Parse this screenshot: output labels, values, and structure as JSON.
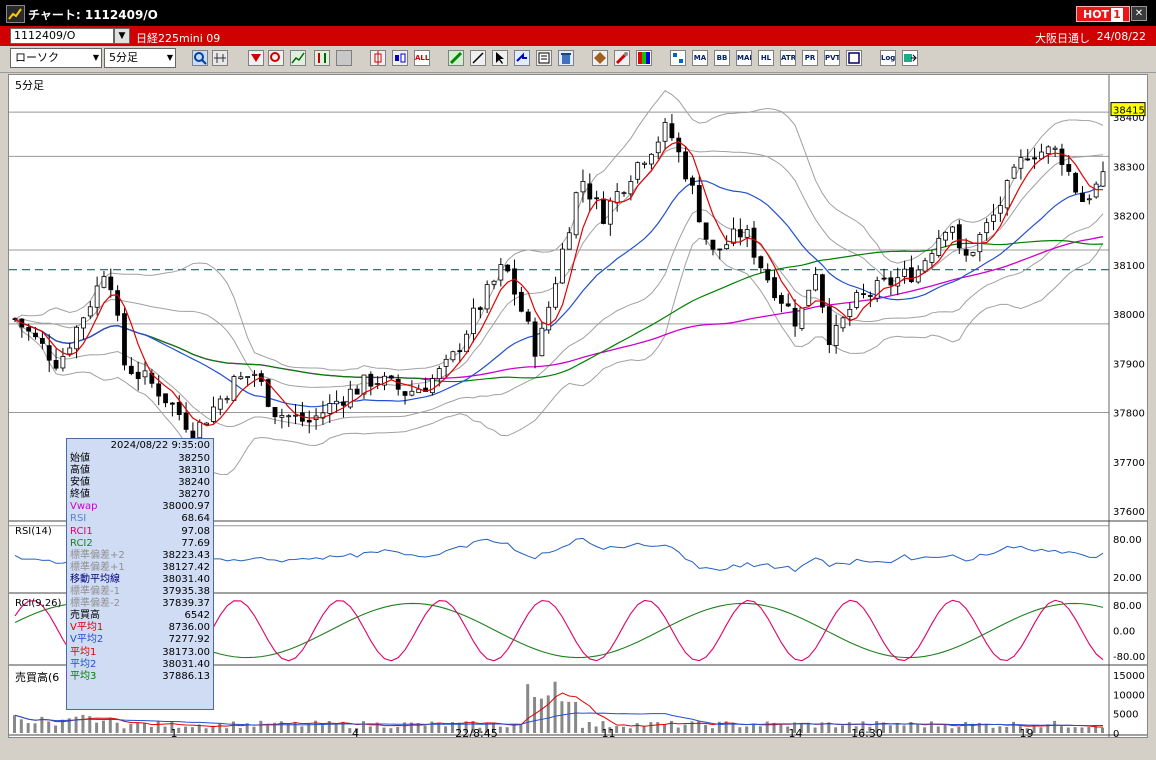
{
  "window": {
    "title": "チャート: 1112409/O",
    "hot_label": "HOT",
    "hot_num": "1"
  },
  "symbol": {
    "code": "1112409/O",
    "name": "日経225mini 09",
    "market": "大阪日通し",
    "date": "24/08/22"
  },
  "toolbar": {
    "chart_type": "ローソク",
    "interval": "5分足"
  },
  "icons": [
    "zoom-icon",
    "bars-icon",
    "marker-icon",
    "search-icon",
    "chart-icon",
    "compare-icon",
    "disabled-icon",
    "candle-icon",
    "candle2-icon",
    "all-icon",
    "pen-icon",
    "line-tool-icon",
    "cursor-icon",
    "arrow-icon",
    "list-icon",
    "trash-icon",
    "settings-icon",
    "wrench-icon",
    "palette-icon",
    "indicator-icon",
    "ma-icon",
    "bb-icon",
    "mae-icon",
    "hl-icon",
    "atr-icon",
    "pr-icon",
    "pvt-icon",
    "window-icon",
    "log-icon",
    "export-icon"
  ],
  "icon_labels": {
    "all": "ALL",
    "ma": "MA",
    "bb": "BB",
    "mae": "MAE",
    "hl": "HL",
    "atr": "ATR",
    "pr": "PR",
    "pvt": "PVT",
    "log": "Log"
  },
  "colors": {
    "candle_up": "#000000",
    "ma1": "#e00000",
    "ma2": "#2050d0",
    "ma3": "#008000",
    "vwap": "#cc00cc",
    "bb": "#a0a0a0",
    "rsi": "#2060c0",
    "rci1": "#e0006a",
    "rci2": "#208020",
    "dash": "#206060",
    "price_marker": "#ffff00"
  },
  "panels": {
    "price": {
      "label": "5分足",
      "current": "38415",
      "ticks": [
        "38400",
        "38300",
        "38200",
        "38100",
        "38000",
        "37900",
        "37800",
        "37700",
        "37600"
      ]
    },
    "rsi": {
      "label": "RSI(14)",
      "ticks": [
        "80.00",
        "20.00"
      ]
    },
    "rci": {
      "label": "RCI(9,26)",
      "ticks": [
        "80.00",
        "0.00",
        "-80.00"
      ]
    },
    "volume": {
      "label": "売買高(6",
      "ticks": [
        "15000",
        "10000",
        "5000",
        "0"
      ]
    }
  },
  "xaxis": [
    "1",
    "4",
    "22/8:45",
    "11",
    "14",
    "16:30",
    "19"
  ],
  "info": {
    "timestamp": "2024/08/22  9:35:00",
    "rows": [
      {
        "label": "始値",
        "value": "38250",
        "color": "#000000"
      },
      {
        "label": "高値",
        "value": "38310",
        "color": "#000000"
      },
      {
        "label": "安値",
        "value": "38240",
        "color": "#000000"
      },
      {
        "label": "終値",
        "value": "38270",
        "color": "#000000"
      },
      {
        "label": "Vwap",
        "value": "38000.97",
        "color": "#cc00cc"
      },
      {
        "label": "RSI",
        "value": "68.64",
        "color": "#6080d0"
      },
      {
        "label": "RCI1",
        "value": "97.08",
        "color": "#e0006a"
      },
      {
        "label": "RCI2",
        "value": "77.69",
        "color": "#208020"
      },
      {
        "label": "標準偏差+2",
        "value": "38223.43",
        "color": "#909090"
      },
      {
        "label": "標準偏差+1",
        "value": "38127.42",
        "color": "#909090"
      },
      {
        "label": "移動平均線",
        "value": "38031.40",
        "color": "#000080"
      },
      {
        "label": "標準偏差-1",
        "value": "37935.38",
        "color": "#909090"
      },
      {
        "label": "標準偏差-2",
        "value": "37839.37",
        "color": "#909090"
      },
      {
        "label": "売買高",
        "value": "6542",
        "color": "#000000"
      },
      {
        "label": "V平均1",
        "value": "8736.00",
        "color": "#e00000"
      },
      {
        "label": "V平均2",
        "value": "7277.92",
        "color": "#2050d0"
      },
      {
        "label": "平均1",
        "value": "38173.00",
        "color": "#e00000"
      },
      {
        "label": "平均2",
        "value": "38031.40",
        "color": "#2050d0"
      },
      {
        "label": "平均3",
        "value": "37886.13",
        "color": "#008000"
      }
    ]
  }
}
